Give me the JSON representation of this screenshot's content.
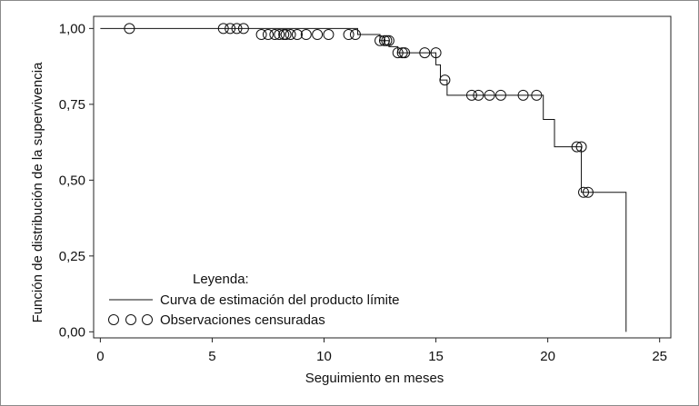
{
  "chart_data": {
    "type": "line",
    "xlabel": "Seguimiento en meses",
    "ylabel": "Función de distribución de la supervivencia",
    "xlim": [
      -0.3,
      25.5
    ],
    "ylim": [
      -0.02,
      1.04
    ],
    "x_ticks": [
      0,
      5,
      10,
      15,
      20,
      25
    ],
    "x_tick_labels": [
      "0",
      "5",
      "10",
      "15",
      "20",
      "25"
    ],
    "y_ticks": [
      0,
      0.25,
      0.5,
      0.75,
      1.0
    ],
    "y_tick_labels": [
      "0,00",
      "0,25",
      "0,50",
      "0,75",
      "1,00"
    ],
    "grid": false,
    "legend": {
      "title": "Leyenda:",
      "line_label": "Curva de estimación del producto límite",
      "marker_label": "Observaciones censuradas",
      "position": "bottom-left"
    },
    "series": [
      {
        "kind": "step",
        "x": [
          0,
          11.5,
          12.5,
          12.9,
          13.3,
          15.0,
          15.2,
          15.5,
          19.8,
          20.3,
          21.5,
          23.5
        ],
        "y": [
          1.0,
          0.98,
          0.96,
          0.94,
          0.92,
          0.88,
          0.83,
          0.78,
          0.7,
          0.61,
          0.46,
          0.0
        ]
      },
      {
        "kind": "censored",
        "marker": "circle",
        "x": [
          1.3,
          5.5,
          5.8,
          6.1,
          6.4,
          7.2,
          7.5,
          7.8,
          8.0,
          8.2,
          8.3,
          8.5,
          8.8,
          9.2,
          9.7,
          10.2,
          11.1,
          11.4,
          12.5,
          12.7,
          12.8,
          12.9,
          13.3,
          13.5,
          13.6,
          14.5,
          15.0,
          15.4,
          16.6,
          16.9,
          17.4,
          17.9,
          18.9,
          19.5,
          21.3,
          21.5,
          21.6,
          21.8
        ],
        "y": [
          1.0,
          1.0,
          1.0,
          1.0,
          1.0,
          0.98,
          0.98,
          0.98,
          0.98,
          0.98,
          0.98,
          0.98,
          0.98,
          0.98,
          0.98,
          0.98,
          0.98,
          0.98,
          0.96,
          0.96,
          0.96,
          0.96,
          0.92,
          0.92,
          0.92,
          0.92,
          0.92,
          0.83,
          0.78,
          0.78,
          0.78,
          0.78,
          0.78,
          0.78,
          0.61,
          0.61,
          0.46,
          0.46
        ]
      }
    ]
  }
}
